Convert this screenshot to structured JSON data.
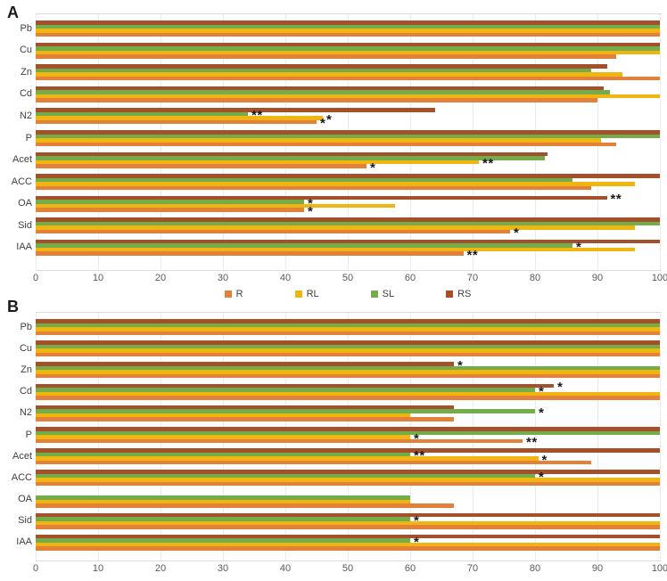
{
  "colors": {
    "series_R": "#E3813B",
    "series_RL": "#F0B511",
    "series_SL": "#73AC4B",
    "series_RS": "#A4512B",
    "gridline": "#EBEBEB",
    "axis_text": "#595959",
    "category_text": "#3F3F3F",
    "significance_star": "#1A1A1A"
  },
  "chart_data": [
    {
      "panel_label": "A",
      "type": "bar",
      "orientation": "horizontal",
      "categories": [
        "Pb",
        "Cu",
        "Zn",
        "Cd",
        "N2",
        "P",
        "Acet",
        "ACC",
        "OA",
        "Sid",
        "IAA"
      ],
      "series": [
        {
          "name": "R",
          "color": "#E3813B",
          "values": [
            100,
            93,
            100,
            90,
            45,
            93,
            53,
            89,
            43,
            76,
            68.5
          ],
          "significance": [
            "",
            "",
            "",
            "",
            "*",
            "",
            "*",
            "",
            "*",
            "*",
            "**"
          ]
        },
        {
          "name": "RL",
          "color": "#F0B511",
          "values": [
            100,
            100,
            94,
            100,
            46,
            90.5,
            71,
            96,
            57.5,
            96,
            96
          ],
          "significance": [
            "",
            "",
            "",
            "",
            "*",
            "",
            "**",
            "",
            "",
            "",
            ""
          ]
        },
        {
          "name": "SL",
          "color": "#73AC4B",
          "values": [
            100,
            100,
            89,
            92,
            34,
            100,
            81.5,
            86,
            43,
            100,
            86
          ],
          "significance": [
            "",
            "",
            "",
            "",
            "**",
            "",
            "",
            "",
            "*",
            "",
            "*"
          ]
        },
        {
          "name": "RS",
          "color": "#A4512B",
          "values": [
            100,
            100,
            91.5,
            91,
            64,
            100,
            82,
            100,
            91.5,
            100,
            100
          ],
          "significance": [
            "",
            "",
            "",
            "",
            "",
            "",
            "",
            "",
            "**",
            "",
            ""
          ]
        }
      ],
      "xlim": [
        0,
        100
      ],
      "xticks": [
        0,
        10,
        20,
        30,
        40,
        50,
        60,
        70,
        80,
        90,
        100
      ],
      "grid": true,
      "legend_position": "bottom"
    },
    {
      "panel_label": "B",
      "type": "bar",
      "orientation": "horizontal",
      "categories": [
        "Pb",
        "Cu",
        "Zn",
        "Cd",
        "N2",
        "P",
        "Acet",
        "ACC",
        "OA",
        "Sid",
        "IAA"
      ],
      "series": [
        {
          "name": "R",
          "color": "#E3813B",
          "values": [
            100,
            100,
            100,
            100,
            67,
            78,
            89,
            100,
            67,
            100,
            100
          ],
          "significance": [
            "",
            "",
            "",
            "",
            "",
            "**",
            "",
            "",
            "",
            "",
            ""
          ]
        },
        {
          "name": "RL",
          "color": "#F0B511",
          "values": [
            100,
            100,
            100,
            100,
            60,
            60,
            80.5,
            100,
            60,
            100,
            100
          ],
          "significance": [
            "",
            "",
            "",
            "",
            "",
            "*",
            "*",
            "",
            "",
            "",
            ""
          ]
        },
        {
          "name": "SL",
          "color": "#73AC4B",
          "values": [
            100,
            100,
            100,
            80,
            80,
            100,
            60,
            80,
            60,
            60,
            60
          ],
          "significance": [
            "",
            "",
            "",
            "*",
            "*",
            "",
            "**",
            "*",
            "",
            "*",
            "*"
          ]
        },
        {
          "name": "RS",
          "color": "#A4512B",
          "values": [
            100,
            100,
            67,
            83,
            67,
            100,
            100,
            100,
            0,
            100,
            100
          ],
          "significance": [
            "",
            "",
            "*",
            "*",
            "",
            "",
            "",
            "",
            "",
            "",
            ""
          ]
        }
      ],
      "xlim": [
        0,
        100
      ],
      "xticks": [
        0,
        10,
        20,
        30,
        40,
        50,
        60,
        70,
        80,
        90,
        100
      ],
      "grid": true,
      "legend_position": "none"
    }
  ]
}
